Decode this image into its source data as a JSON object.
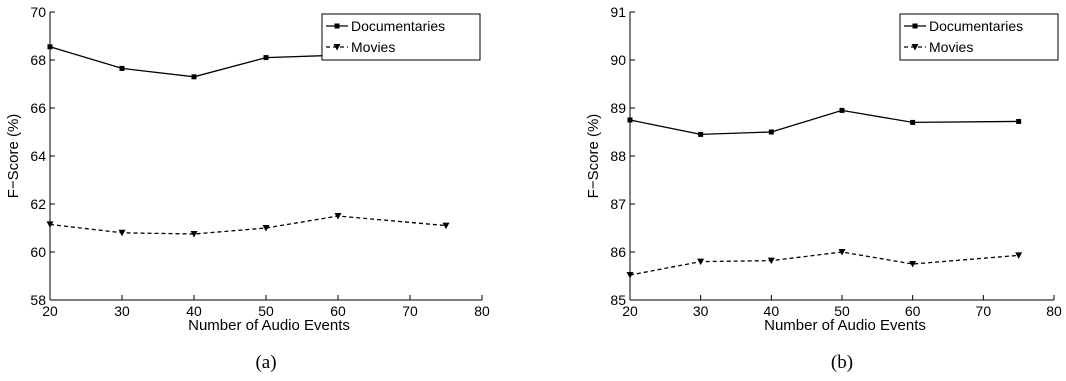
{
  "chart_data": [
    {
      "type": "line",
      "caption": "(a)",
      "xlabel": "Number of Audio Events",
      "ylabel": "F−Score (%)",
      "xlim": [
        20,
        80
      ],
      "ylim": [
        58,
        70
      ],
      "xticks": [
        "20",
        "30",
        "40",
        "50",
        "60",
        "70",
        "80"
      ],
      "yticks": [
        "58",
        "60",
        "62",
        "64",
        "66",
        "68",
        "70"
      ],
      "legend_position": "top-right",
      "x": [
        20,
        30,
        40,
        50,
        60,
        75
      ],
      "series": [
        {
          "name": "Documentaries",
          "values": [
            68.55,
            67.65,
            67.3,
            68.1,
            68.2,
            68.55
          ],
          "line": "solid",
          "marker": "square",
          "color": "#000000"
        },
        {
          "name": "Movies",
          "values": [
            61.15,
            60.8,
            60.75,
            61.0,
            61.5,
            61.1
          ],
          "line": "dashed",
          "marker": "triangle-down",
          "color": "#000000"
        }
      ]
    },
    {
      "type": "line",
      "caption": "(b)",
      "xlabel": "Number of Audio Events",
      "ylabel": "F−Score (%)",
      "xlim": [
        20,
        80
      ],
      "ylim": [
        85,
        91
      ],
      "xticks": [
        "20",
        "30",
        "40",
        "50",
        "60",
        "70",
        "80"
      ],
      "yticks": [
        "85",
        "86",
        "87",
        "88",
        "89",
        "90",
        "91"
      ],
      "legend_position": "top-right",
      "x": [
        20,
        30,
        40,
        50,
        60,
        75
      ],
      "series": [
        {
          "name": "Documentaries",
          "values": [
            88.75,
            88.45,
            88.5,
            88.95,
            88.7,
            88.72
          ],
          "line": "solid",
          "marker": "square",
          "color": "#000000"
        },
        {
          "name": "Movies",
          "values": [
            85.52,
            85.8,
            85.82,
            86.0,
            85.75,
            85.93
          ],
          "line": "dashed",
          "marker": "triangle-down",
          "color": "#000000"
        }
      ]
    }
  ]
}
